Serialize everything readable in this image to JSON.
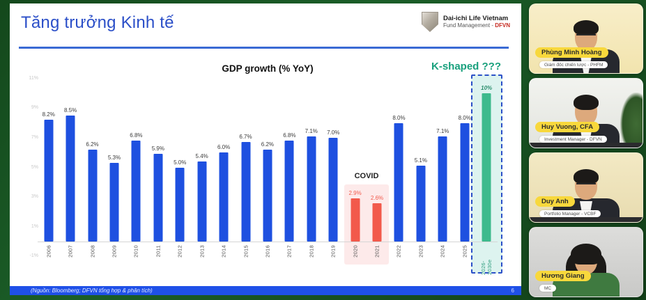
{
  "slide": {
    "title": "Tăng trưởng Kinh tế",
    "logo": {
      "name": "Dai-ichi Life Vietnam",
      "division_prefix": "Fund Management - ",
      "division_brand": "DFVN"
    },
    "k_shaped_label": "K-shaped ???",
    "covid_label": "COVID",
    "footer_source": "(Nguồn: Bloomberg; DFVN tổng hợp & phân tích)",
    "footer_page": "6"
  },
  "chart_data": {
    "type": "bar",
    "title": "GDP growth (% YoY)",
    "categories": [
      "2006",
      "2007",
      "2008",
      "2009",
      "2010",
      "2011",
      "2012",
      "2013",
      "2014",
      "2015",
      "2016",
      "2017",
      "2018",
      "2019",
      "2020",
      "2021",
      "2022",
      "2023",
      "2024",
      "2025",
      "2026-2030e"
    ],
    "values": [
      8.2,
      8.5,
      6.2,
      5.3,
      6.8,
      5.9,
      5.0,
      5.4,
      6.0,
      6.7,
      6.2,
      6.8,
      7.1,
      7.0,
      2.9,
      2.6,
      8.0,
      5.1,
      7.1,
      8.0,
      10
    ],
    "labels": [
      "8.2%",
      "8.5%",
      "6.2%",
      "5.3%",
      "6.8%",
      "5.9%",
      "5.0%",
      "5.4%",
      "6.0%",
      "6.7%",
      "6.2%",
      "6.8%",
      "7.1%",
      "7.0%",
      "2.9%",
      "2.6%",
      "8.0%",
      "5.1%",
      "7.1%",
      "8.0%",
      "10%"
    ],
    "xlabel": "",
    "ylabel": "",
    "ylim": [
      -1,
      11
    ],
    "yticks": [
      {
        "value": 11,
        "label": "11%"
      },
      {
        "value": 9,
        "label": "9%"
      },
      {
        "value": 7,
        "label": "7%"
      },
      {
        "value": 5,
        "label": "5%"
      },
      {
        "value": 3,
        "label": "3%"
      },
      {
        "value": 1,
        "label": "1%"
      },
      {
        "value": -1,
        "label": "-1%"
      }
    ],
    "grid": false,
    "legend": false,
    "colors": {
      "default": "#1e50e0",
      "covid": "#f2594b",
      "forecast": "#3dba8d"
    },
    "covid_indices": [
      14,
      15
    ],
    "forecast_index": 20,
    "annotations": [
      "COVID",
      "K-shaped ???"
    ]
  },
  "participants": [
    {
      "name": "Phùng Minh Hoàng",
      "role": "Giám đốc chiến lược - PHFM"
    },
    {
      "name": "Huy Vuong, CFA",
      "role": "Investment Manager - DFVN"
    },
    {
      "name": "Duy Anh",
      "role": "Portfolio Manager - VCBF"
    },
    {
      "name": "Hương Giang",
      "role": "MC"
    }
  ]
}
